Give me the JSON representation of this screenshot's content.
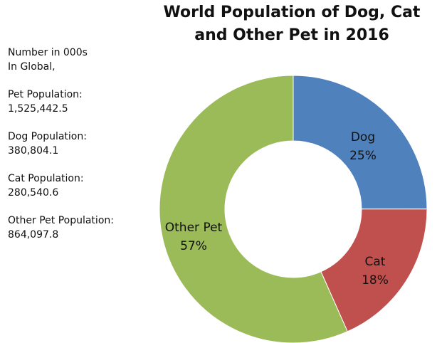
{
  "chart_data": {
    "type": "pie",
    "title": "World Population of Dog, Cat and Other Pet in 2016",
    "title_lines": [
      "World Population of Dog, Cat",
      "and Other Pet in 2016"
    ],
    "style": "donut",
    "start_angle_deg": 0,
    "direction": "clockwise",
    "slices": [
      {
        "label": "Dog",
        "value": 380804.1,
        "percent_label": "25%",
        "color": "#4f81bd"
      },
      {
        "label": "Cat",
        "value": 280540.6,
        "percent_label": "18%",
        "color": "#c0504d"
      },
      {
        "label": "Other Pet",
        "value": 864097.8,
        "percent_label": "57%",
        "color": "#9bbb59"
      }
    ],
    "annotations": [
      [
        "Number in 000s",
        "In Global,"
      ],
      [
        "Pet Population:",
        "1,525,442.5"
      ],
      [
        "Dog Population:",
        "380,804.1"
      ],
      [
        "Cat Population:",
        "280,540.6"
      ],
      [
        "Other Pet Population:",
        "864,097.8"
      ]
    ]
  }
}
